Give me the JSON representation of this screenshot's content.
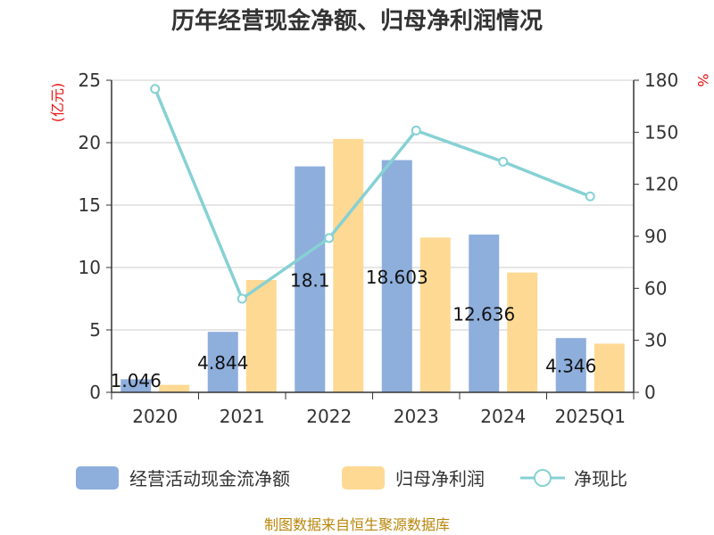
{
  "chart_data": {
    "type": "bar",
    "title": "历年经营现金净额、归母净利润情况",
    "categories": [
      "2020",
      "2021",
      "2022",
      "2023",
      "2024",
      "2025Q1"
    ],
    "y_left": {
      "unit": "(亿元)",
      "range": [
        0,
        25
      ],
      "ticks": [
        "0",
        "5",
        "10",
        "15",
        "20",
        "25"
      ]
    },
    "y_right": {
      "unit": "%",
      "range": [
        0,
        180
      ],
      "ticks": [
        "0",
        "30",
        "60",
        "90",
        "120",
        "150",
        "180"
      ]
    },
    "series": [
      {
        "name": "经营活动现金流净额",
        "type": "bar",
        "axis": "left",
        "color": "#8eaedc",
        "values": [
          1.046,
          4.844,
          18.1,
          18.603,
          12.636,
          4.346
        ],
        "labels": [
          "1.046",
          "4.844",
          "18.1",
          "18.603",
          "12.636",
          "4.346"
        ]
      },
      {
        "name": "归母净利润",
        "type": "bar",
        "axis": "left",
        "color": "#fed994",
        "values": [
          0.6,
          9.0,
          20.3,
          12.4,
          9.6,
          3.9
        ]
      },
      {
        "name": "净现比",
        "type": "line",
        "axis": "right",
        "color": "#86d1d4",
        "values": [
          175,
          54,
          89,
          151,
          133,
          113
        ]
      }
    ],
    "grid": true,
    "legend_position": "bottom"
  },
  "source": "制图数据来自恒生聚源数据库"
}
